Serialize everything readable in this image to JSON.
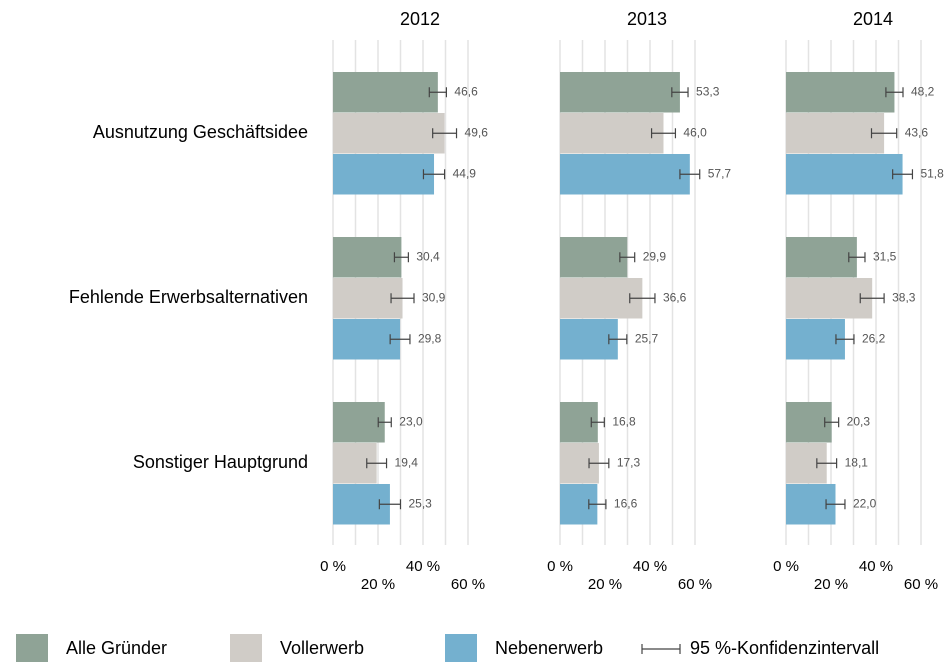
{
  "chart_data": {
    "type": "bar",
    "orientation": "horizontal",
    "categories": [
      "Ausnutzung Geschäftsidee",
      "Fehlende Erwerbsalternativen",
      "Sonstiger Hauptgrund"
    ],
    "series": [
      {
        "name": "Alle Gründer",
        "color": "#8fa396"
      },
      {
        "name": "Vollerwerb",
        "color": "#d0ccc7"
      },
      {
        "name": "Nebenerwerb",
        "color": "#74b0cf"
      }
    ],
    "error_label": "95 %-Konfidenzintervall",
    "xlim": [
      0,
      60
    ],
    "xticks": [
      {
        "value": 0,
        "label": "0 %"
      },
      {
        "value": 20,
        "label": "20 %"
      },
      {
        "value": 40,
        "label": "40 %"
      },
      {
        "value": 60,
        "label": "60 %"
      }
    ],
    "grid_lines": [
      0,
      10,
      20,
      30,
      40,
      50,
      60
    ],
    "panels": [
      {
        "title": "2012",
        "series": [
          {
            "values": [
              46.6,
              30.4,
              23.0
            ],
            "value_labels": [
              "46,6",
              "30,4",
              "23,0"
            ],
            "errors": [
              3.8,
              3.1,
              2.9
            ]
          },
          {
            "values": [
              49.6,
              30.9,
              19.4
            ],
            "value_labels": [
              "49,6",
              "30,9",
              "19,4"
            ],
            "errors": [
              5.3,
              5.1,
              4.4
            ]
          },
          {
            "values": [
              44.9,
              29.8,
              25.3
            ],
            "value_labels": [
              "44,9",
              "29,8",
              "25,3"
            ],
            "errors": [
              4.7,
              4.4,
              4.7
            ]
          }
        ]
      },
      {
        "title": "2013",
        "series": [
          {
            "values": [
              53.3,
              29.9,
              16.8
            ],
            "value_labels": [
              "53,3",
              "29,9",
              "16,8"
            ],
            "errors": [
              3.6,
              3.3,
              2.9
            ]
          },
          {
            "values": [
              46.0,
              36.6,
              17.3
            ],
            "value_labels": [
              "46,0",
              "36,6",
              "17,3"
            ],
            "errors": [
              5.3,
              5.6,
              4.4
            ]
          },
          {
            "values": [
              57.7,
              25.7,
              16.6
            ],
            "value_labels": [
              "57,7",
              "25,7",
              "16,6"
            ],
            "errors": [
              4.4,
              4.0,
              3.8
            ]
          }
        ]
      },
      {
        "title": "2014",
        "series": [
          {
            "values": [
              48.2,
              31.5,
              20.3
            ],
            "value_labels": [
              "48,2",
              "31,5",
              "20,3"
            ],
            "errors": [
              3.8,
              3.6,
              3.1
            ]
          },
          {
            "values": [
              43.6,
              38.3,
              18.1
            ],
            "value_labels": [
              "43,6",
              "38,3",
              "18,1"
            ],
            "errors": [
              5.6,
              5.3,
              4.4
            ]
          },
          {
            "values": [
              51.8,
              26.2,
              22.0
            ],
            "value_labels": [
              "51,8",
              "26,2",
              "22,0"
            ],
            "errors": [
              4.4,
              4.0,
              4.2
            ]
          }
        ]
      }
    ]
  }
}
